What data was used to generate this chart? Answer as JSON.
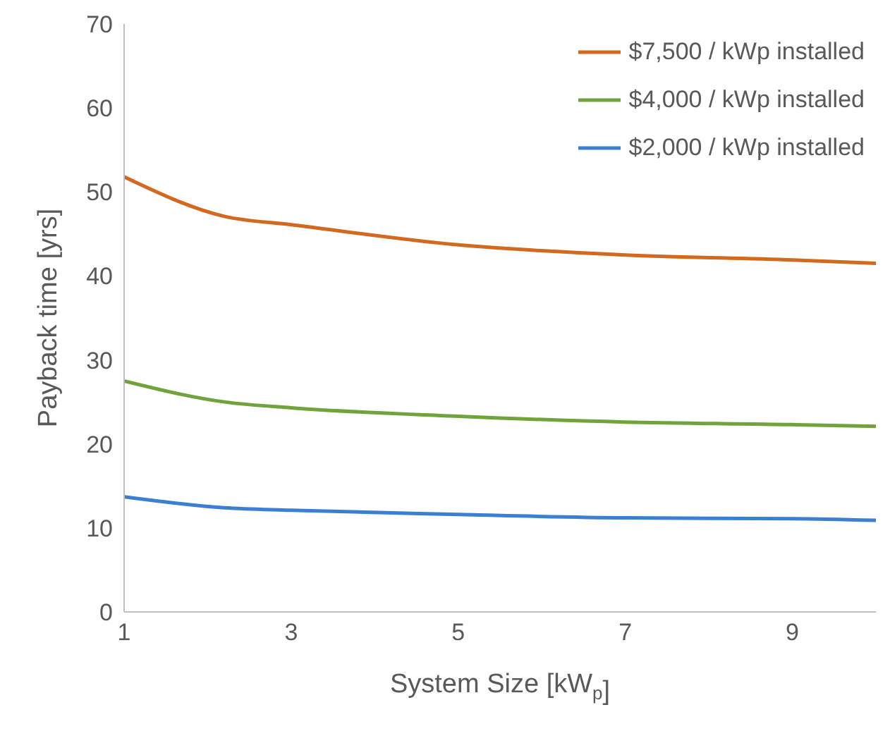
{
  "chart_data": {
    "type": "line",
    "xlabel": "System Size [kW$_{p}$]",
    "ylabel": "Payback time [yrs]",
    "x": [
      1,
      2.2,
      3,
      5,
      7,
      9,
      10
    ],
    "series": [
      {
        "name": "$7,500 / kWp installed",
        "color": "#d2691e",
        "values": [
          51.8,
          47.1,
          46.1,
          43.7,
          42.5,
          41.9,
          41.5
        ]
      },
      {
        "name": "$4,000 / kWp installed",
        "color": "#70a33c",
        "values": [
          27.5,
          25,
          24.3,
          23.3,
          22.6,
          22.3,
          22.1
        ]
      },
      {
        "name": "$2,000 / kWp installed",
        "color": "#3b7fd0",
        "values": [
          13.7,
          12.4,
          12.1,
          11.6,
          11.2,
          11.1,
          10.9
        ]
      }
    ],
    "xlim": [
      1,
      10
    ],
    "xticks": [
      1,
      3,
      5,
      7,
      9
    ],
    "ylim": [
      0,
      70
    ],
    "yticks": [
      0,
      10,
      20,
      30,
      40,
      50,
      60,
      70
    ],
    "grid": false,
    "legend": "top right",
    "marker": "none",
    "line_style": "solid"
  }
}
